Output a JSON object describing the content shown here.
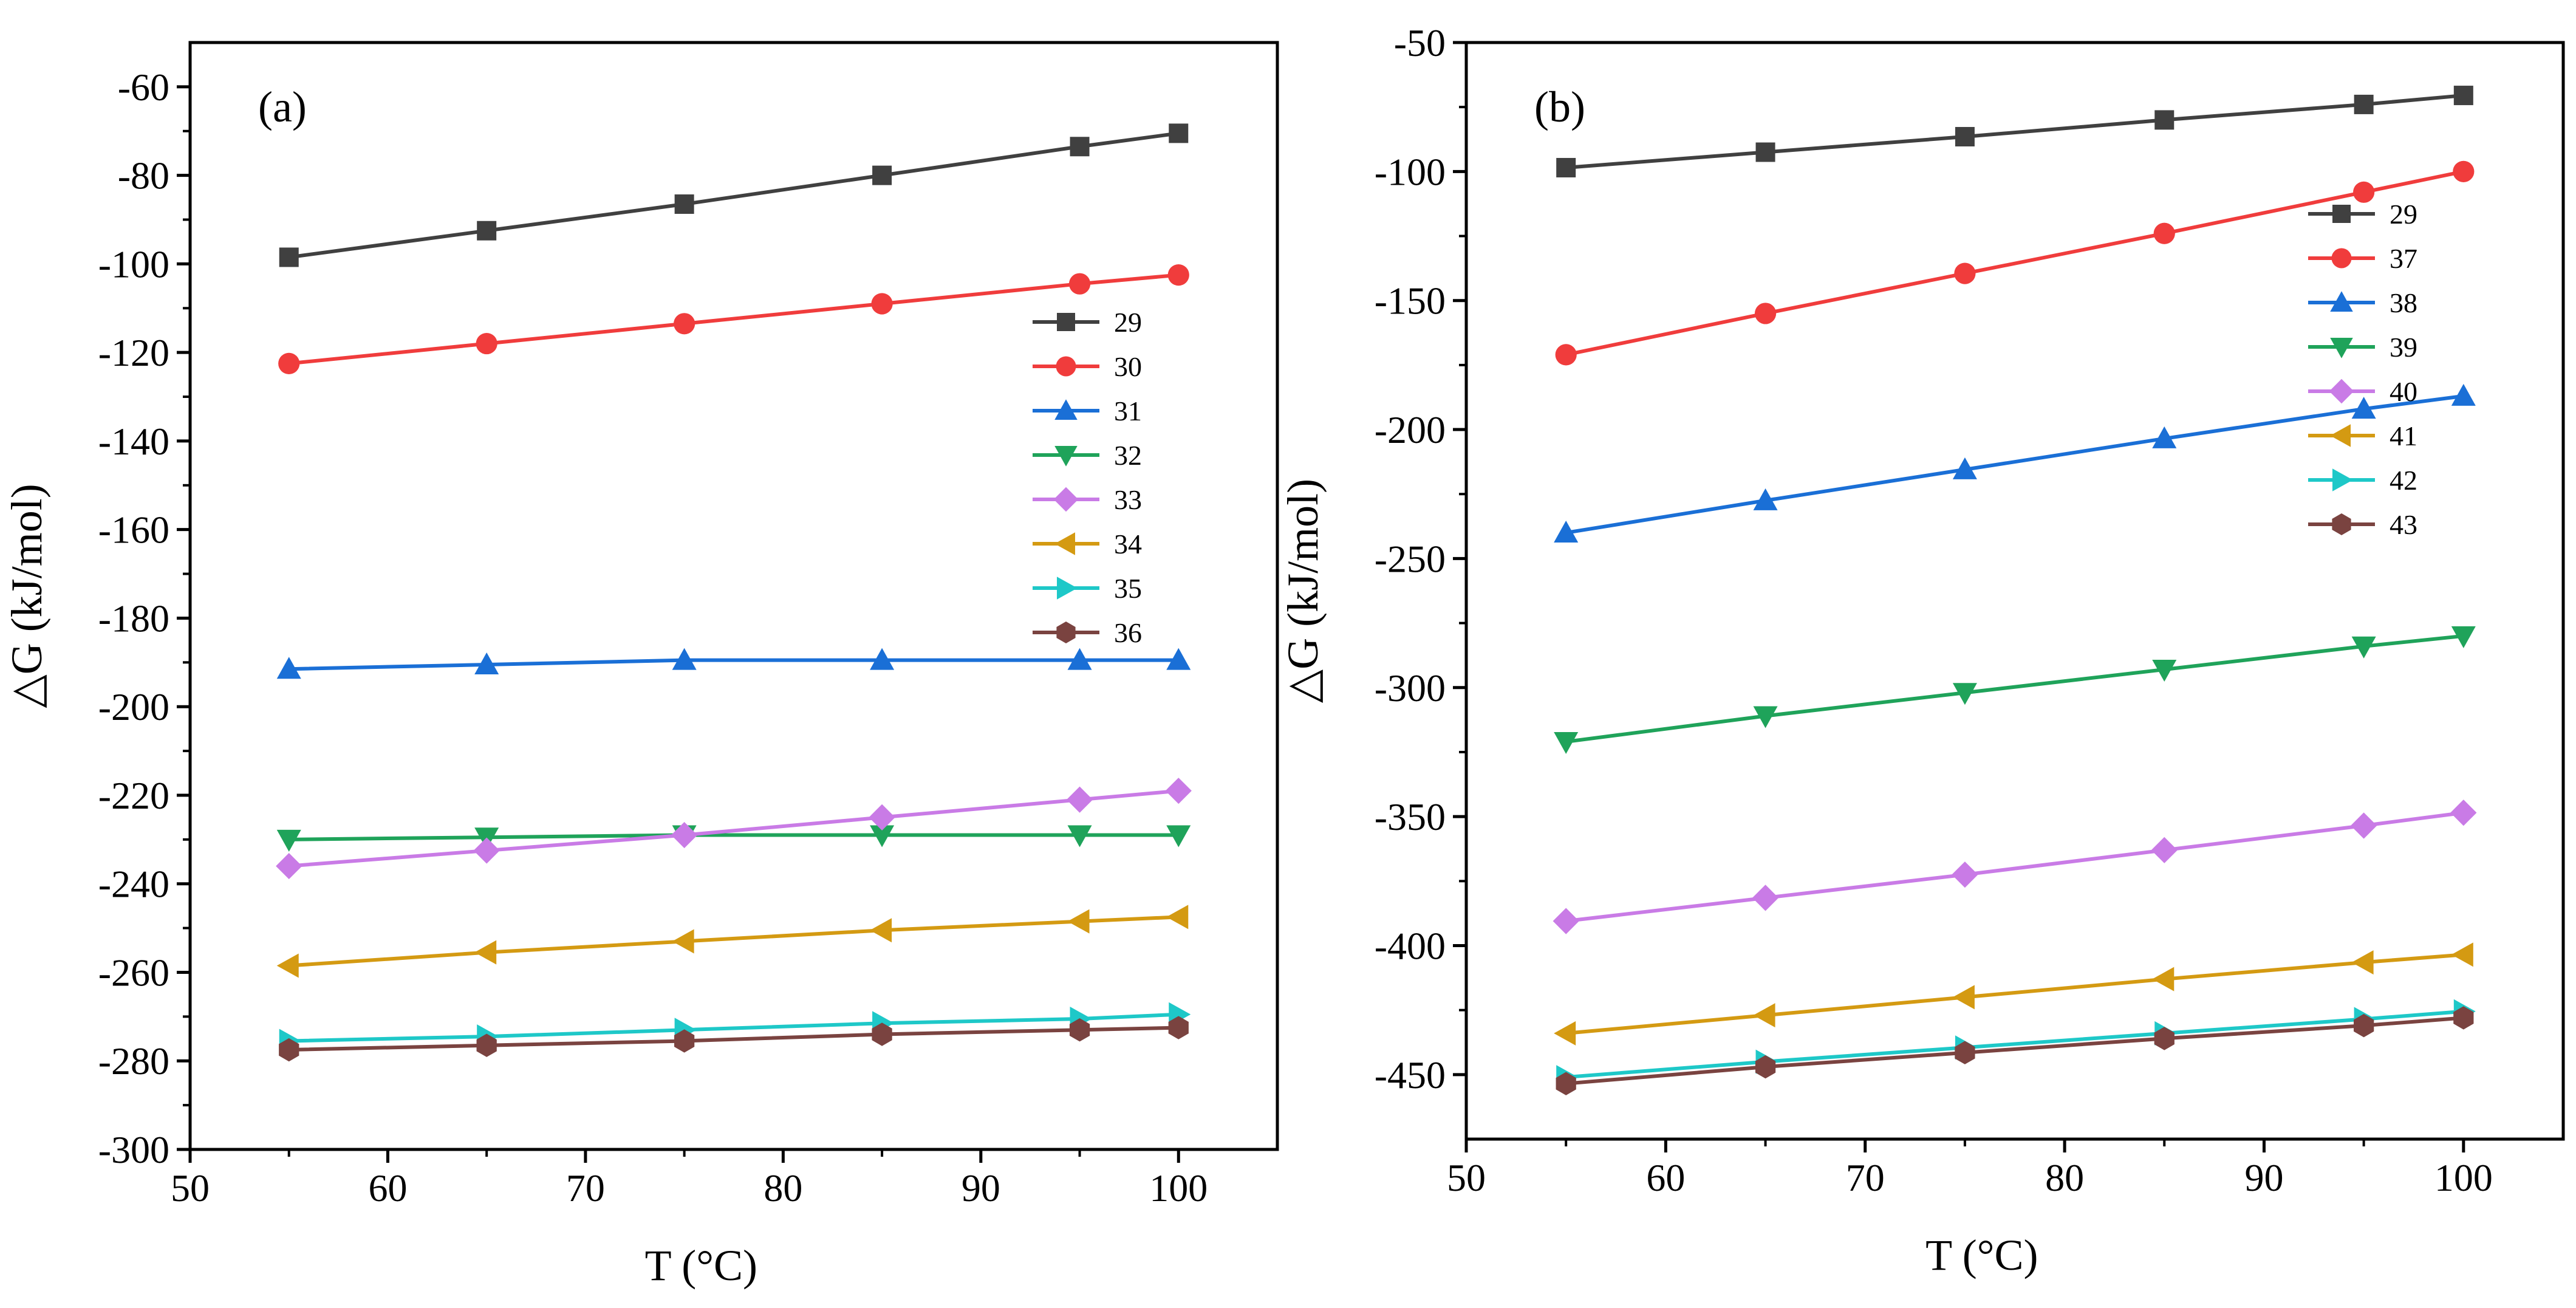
{
  "chart_data": [
    {
      "type": "line",
      "panel_label": "(a)",
      "xlabel": "T (°C)",
      "ylabel": "△G (kJ/mol)",
      "xlim": [
        50,
        105
      ],
      "ylim": [
        -300,
        -50
      ],
      "xticks": [
        "50",
        "60",
        "70",
        "80",
        "90",
        "100"
      ],
      "yticks": [
        "-60",
        "-80",
        "-100",
        "-120",
        "-140",
        "-160",
        "-180",
        "-200",
        "-220",
        "-240",
        "-260",
        "-280",
        "-300"
      ],
      "grid": false,
      "legend_position": "right-middle",
      "x": [
        55,
        65,
        75,
        85,
        95,
        100
      ],
      "series": [
        {
          "name": "29",
          "color": "#404040",
          "marker": "square",
          "values": [
            -98.5,
            -92.5,
            -86.5,
            -80,
            -73.5,
            -70.5
          ]
        },
        {
          "name": "30",
          "color": "#f03c3c",
          "marker": "circle",
          "values": [
            -122.5,
            -118,
            -113.5,
            -109,
            -104.5,
            -102.5
          ]
        },
        {
          "name": "31",
          "color": "#1a6fd6",
          "marker": "triangle-up",
          "values": [
            -191.5,
            -190.5,
            -189.5,
            -189.5,
            -189.5,
            -189.5
          ]
        },
        {
          "name": "32",
          "color": "#1fa35a",
          "marker": "triangle-down",
          "values": [
            -230,
            -229.5,
            -229,
            -229,
            -229,
            -229
          ]
        },
        {
          "name": "33",
          "color": "#c97be6",
          "marker": "diamond",
          "values": [
            -236,
            -232.5,
            -229,
            -225,
            -221,
            -219
          ]
        },
        {
          "name": "34",
          "color": "#d49a12",
          "marker": "triangle-left",
          "values": [
            -258.5,
            -255.5,
            -253,
            -250.5,
            -248.5,
            -247.5
          ]
        },
        {
          "name": "35",
          "color": "#1ec8c8",
          "marker": "triangle-right",
          "values": [
            -275.5,
            -274.5,
            -273,
            -271.5,
            -270.5,
            -269.5
          ]
        },
        {
          "name": "36",
          "color": "#7a4340",
          "marker": "hexagon",
          "values": [
            -277.5,
            -276.5,
            -275.5,
            -274,
            -273,
            -272.5
          ]
        }
      ]
    },
    {
      "type": "line",
      "panel_label": "(b)",
      "xlabel": "T (°C)",
      "ylabel": "△G (kJ/mol)",
      "xlim": [
        50,
        105
      ],
      "ylim": [
        -475,
        -50
      ],
      "xticks": [
        "50",
        "60",
        "70",
        "80",
        "90",
        "100"
      ],
      "yticks": [
        "-50",
        "-100",
        "-150",
        "-200",
        "-250",
        "-300",
        "-350",
        "-400",
        "-450"
      ],
      "grid": false,
      "legend_position": "top-right",
      "x": [
        55,
        65,
        75,
        85,
        95,
        100
      ],
      "series": [
        {
          "name": "29",
          "color": "#404040",
          "marker": "square",
          "values": [
            -98.5,
            -92.5,
            -86.5,
            -80,
            -74,
            -70.5
          ]
        },
        {
          "name": "37",
          "color": "#f03c3c",
          "marker": "circle",
          "values": [
            -171,
            -155,
            -139.5,
            -124,
            -108,
            -100
          ]
        },
        {
          "name": "38",
          "color": "#1a6fd6",
          "marker": "triangle-up",
          "values": [
            -240,
            -227.5,
            -215.5,
            -203.5,
            -192,
            -187
          ]
        },
        {
          "name": "39",
          "color": "#1fa35a",
          "marker": "triangle-down",
          "values": [
            -321,
            -311,
            -302,
            -293,
            -284,
            -280
          ]
        },
        {
          "name": "40",
          "color": "#c97be6",
          "marker": "diamond",
          "values": [
            -390.5,
            -381.5,
            -372.5,
            -363,
            -353.5,
            -348.5
          ]
        },
        {
          "name": "41",
          "color": "#d49a12",
          "marker": "triangle-left",
          "values": [
            -434,
            -427,
            -420,
            -413,
            -406.5,
            -403.5
          ]
        },
        {
          "name": "42",
          "color": "#1ec8c8",
          "marker": "triangle-right",
          "values": [
            -451,
            -445,
            -439.5,
            -434,
            -428.5,
            -425.5
          ]
        },
        {
          "name": "43",
          "color": "#7a4340",
          "marker": "hexagon",
          "values": [
            -453.5,
            -447,
            -441.5,
            -436,
            -431,
            -428
          ]
        }
      ]
    }
  ]
}
